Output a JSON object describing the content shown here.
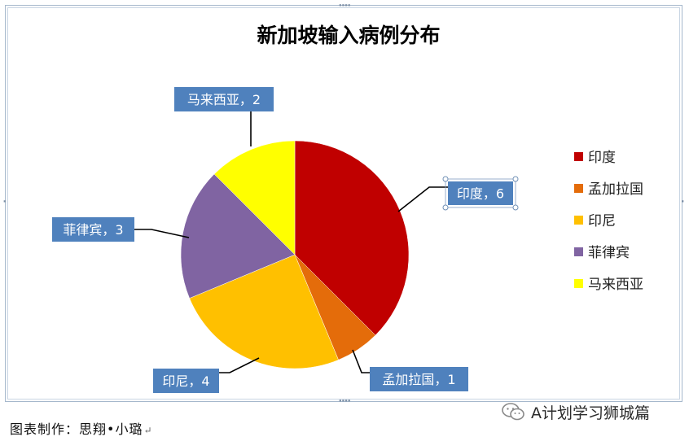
{
  "caption": "图表制作：思翔•小璐",
  "caption_mark": "↵",
  "watermark": {
    "text": "A计划学习狮城篇",
    "icon": "wechat-icon"
  },
  "chart_data": {
    "type": "pie",
    "title": "新加坡输入病例分布",
    "series": [
      {
        "name": "印度",
        "value": 6,
        "color": "#c00000",
        "data_label": "印度，6"
      },
      {
        "name": "孟加拉国",
        "value": 1,
        "color": "#e46c0a",
        "data_label": "孟加拉国，1"
      },
      {
        "name": "印尼",
        "value": 4,
        "color": "#ffc000",
        "data_label": "印尼，4"
      },
      {
        "name": "菲律宾",
        "value": 3,
        "color": "#8064a2",
        "data_label": "菲律宾，3"
      },
      {
        "name": "马来西亚",
        "value": 2,
        "color": "#ffff00",
        "data_label": "马来西亚，2"
      }
    ],
    "legend_position": "right",
    "data_label_style": {
      "background": "#4f81bd",
      "text_color": "#ffffff"
    }
  }
}
